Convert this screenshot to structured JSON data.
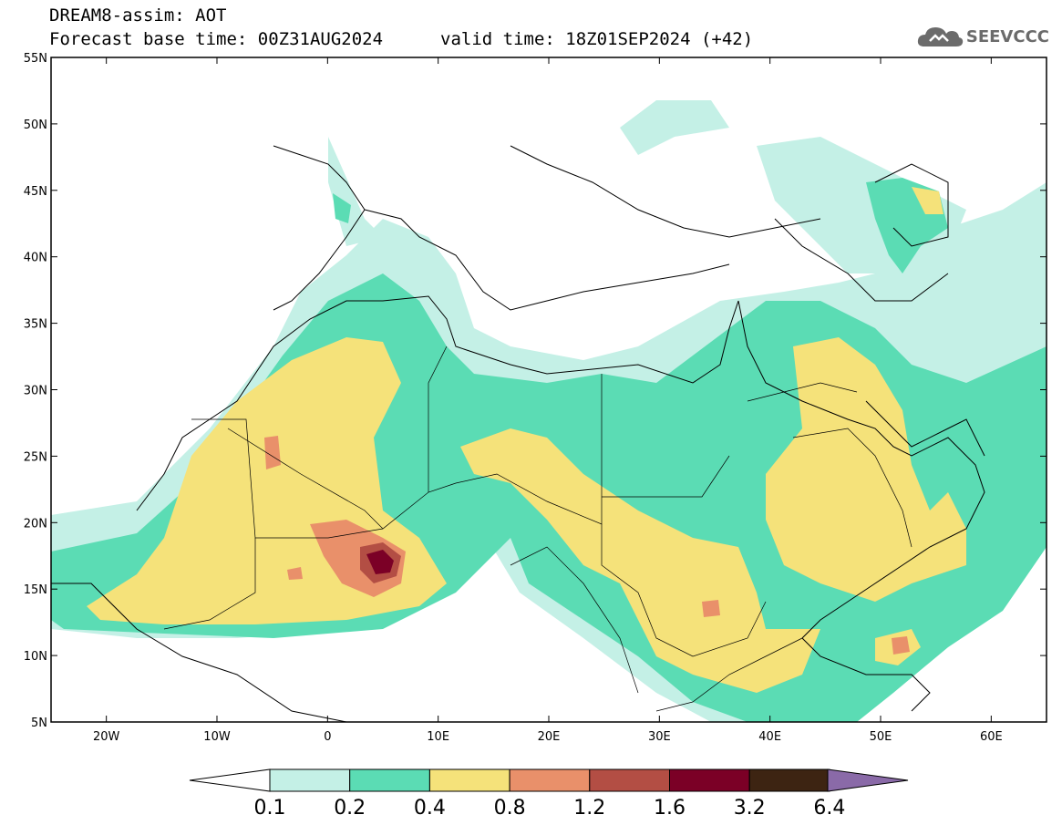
{
  "header": {
    "title": "DREAM8-assim: AOT",
    "base_time": "Forecast base time: 00Z31AUG2024",
    "valid_time": "valid time: 18Z01SEP2024 (+42)"
  },
  "logo": {
    "text": "SEEVCCC",
    "icon": "cloud-icon"
  },
  "map": {
    "lon_labels": [
      "20W",
      "10W",
      "0",
      "10E",
      "20E",
      "30E",
      "40E",
      "50E",
      "60E"
    ],
    "lat_labels": [
      "55N",
      "50N",
      "45N",
      "40N",
      "35N",
      "30N",
      "25N",
      "20N",
      "15N",
      "10N",
      "5N"
    ],
    "lon_range": [
      -25,
      65
    ],
    "lat_range": [
      5,
      55
    ]
  },
  "colorbar": {
    "levels": [
      "0.1",
      "0.2",
      "0.4",
      "0.8",
      "1.2",
      "1.6",
      "3.2",
      "6.4"
    ],
    "colors": [
      "#c4f0e6",
      "#5bdcb4",
      "#f5e27a",
      "#e9906a",
      "#b34e44",
      "#7b0026",
      "#3d2412",
      "#8a6aa8"
    ]
  }
}
